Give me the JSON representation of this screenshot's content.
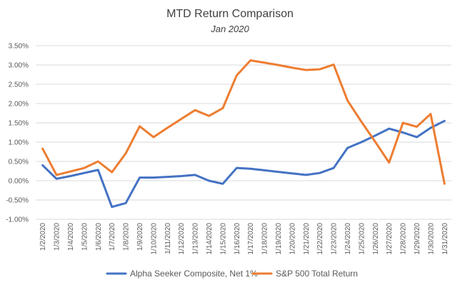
{
  "chart_data": {
    "type": "line",
    "title": "MTD Return Comparison",
    "subtitle": "Jan 2020",
    "xlabel": "",
    "ylabel": "",
    "ylim": [
      -0.01,
      0.035
    ],
    "y_tick_values": [
      -0.01,
      -0.005,
      0,
      0.005,
      0.01,
      0.015,
      0.02,
      0.025,
      0.03,
      0.035
    ],
    "y_tick_labels": [
      "-1.00%",
      "-0.50%",
      "0.00%",
      "0.50%",
      "1.00%",
      "1.50%",
      "2.00%",
      "2.50%",
      "3.00%",
      "3.50%"
    ],
    "grid": true,
    "legend_position": "bottom",
    "categories": [
      "1/2/2020",
      "1/3/2020",
      "1/4/2020",
      "1/5/2020",
      "1/6/2020",
      "1/7/2020",
      "1/8/2020",
      "1/9/2020",
      "1/10/2020",
      "1/11/2020",
      "1/12/2020",
      "1/13/2020",
      "1/14/2020",
      "1/15/2020",
      "1/16/2020",
      "1/17/2020",
      "1/18/2020",
      "1/19/2020",
      "1/20/2020",
      "1/21/2020",
      "1/22/2020",
      "1/23/2020",
      "1/24/2020",
      "1/25/2020",
      "1/26/2020",
      "1/27/2020",
      "1/28/2020",
      "1/29/2020",
      "1/30/2020",
      "1/31/2020"
    ],
    "series": [
      {
        "name": "Alpha Seeker Composite, Net 1%",
        "color": "#4472c4",
        "values": [
          0.004,
          0.0005,
          0.0012,
          0.002,
          0.0028,
          -0.0068,
          -0.0058,
          0.0008,
          0.0008,
          0.001,
          0.0012,
          0.0015,
          0.0,
          -0.0008,
          0.0033,
          0.0031,
          0.0027,
          0.0023,
          0.0019,
          0.0015,
          0.002,
          0.0033,
          0.0085,
          0.01,
          0.0117,
          0.0135,
          0.0125,
          0.0113,
          0.0137,
          0.0155
        ]
      },
      {
        "name": "S&P 500 Total Return",
        "color": "#ed7d31",
        "values": [
          0.0083,
          0.0015,
          0.0024,
          0.0033,
          0.005,
          0.0022,
          0.0071,
          0.0141,
          0.0113,
          0.0137,
          0.016,
          0.0183,
          0.0168,
          0.0188,
          0.0273,
          0.0312,
          0.0306,
          0.03,
          0.0293,
          0.0287,
          0.0289,
          0.0301,
          0.0208,
          0.0153,
          0.0101,
          0.0047,
          0.015,
          0.014,
          0.0173,
          -0.0008
        ]
      }
    ]
  }
}
